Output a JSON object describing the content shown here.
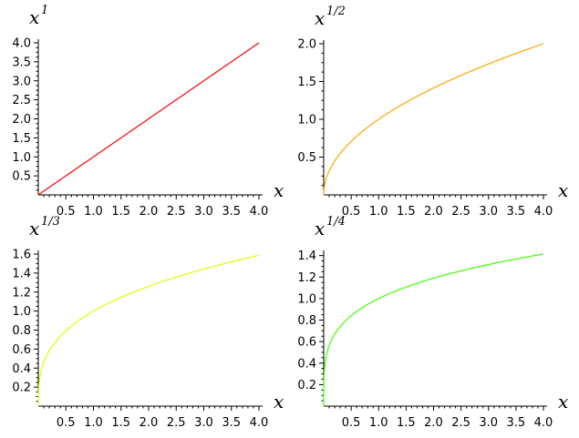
{
  "chart_data": [
    {
      "type": "line",
      "title": "",
      "xlabel": "x",
      "ylabel": "x",
      "ylabel_exponent": "1",
      "color": "#ff0000",
      "exponent": 1,
      "x": [
        0,
        0.5,
        1,
        1.5,
        2,
        2.5,
        3,
        3.5,
        4
      ],
      "y": [
        0,
        0.5,
        1,
        1.5,
        2,
        2.5,
        3,
        3.5,
        4
      ],
      "xlim": [
        0,
        4
      ],
      "ylim": [
        0,
        4
      ],
      "xticks": [
        0.5,
        1.0,
        1.5,
        2.0,
        2.5,
        3.0,
        3.5,
        4.0
      ],
      "xtick_labels": [
        "0.5",
        "1.0",
        "1.5",
        "2.0",
        "2.5",
        "3.0",
        "3.5",
        "4.0"
      ],
      "yticks": [
        0.5,
        1.0,
        1.5,
        2.0,
        2.5,
        3.0,
        3.5,
        4.0
      ],
      "ytick_labels": [
        "0.5",
        "1.0",
        "1.5",
        "2.0",
        "2.5",
        "3.0",
        "3.5",
        "4.0"
      ],
      "grid": false
    },
    {
      "type": "line",
      "title": "",
      "xlabel": "x",
      "ylabel": "x",
      "ylabel_exponent": "1/2",
      "color": "#ffa500",
      "exponent": 0.5,
      "x": [
        0,
        0.5,
        1,
        1.5,
        2,
        2.5,
        3,
        3.5,
        4
      ],
      "y": [
        0,
        0.707,
        1.0,
        1.225,
        1.414,
        1.581,
        1.732,
        1.871,
        2.0
      ],
      "xlim": [
        0,
        4
      ],
      "ylim": [
        0,
        2
      ],
      "xticks": [
        0.5,
        1.0,
        1.5,
        2.0,
        2.5,
        3.0,
        3.5,
        4.0
      ],
      "xtick_labels": [
        "0.5",
        "1.0",
        "1.5",
        "2.0",
        "2.5",
        "3.0",
        "3.5",
        "4.0"
      ],
      "yticks": [
        0.5,
        1.0,
        1.5,
        2.0
      ],
      "ytick_labels": [
        "0.5",
        "1.0",
        "1.5",
        "2.0"
      ],
      "grid": false
    },
    {
      "type": "line",
      "title": "",
      "xlabel": "x",
      "ylabel": "x",
      "ylabel_exponent": "1/3",
      "color": "#dfff00",
      "exponent": 0.3333333,
      "x": [
        0,
        0.5,
        1,
        1.5,
        2,
        2.5,
        3,
        3.5,
        4
      ],
      "y": [
        0,
        0.794,
        1.0,
        1.145,
        1.26,
        1.357,
        1.442,
        1.518,
        1.587
      ],
      "xlim": [
        0,
        4
      ],
      "ylim": [
        0,
        1.6
      ],
      "xticks": [
        0.5,
        1.0,
        1.5,
        2.0,
        2.5,
        3.0,
        3.5,
        4.0
      ],
      "xtick_labels": [
        "0.5",
        "1.0",
        "1.5",
        "2.0",
        "2.5",
        "3.0",
        "3.5",
        "4.0"
      ],
      "yticks": [
        0.2,
        0.4,
        0.6,
        0.8,
        1.0,
        1.2,
        1.4,
        1.6
      ],
      "ytick_labels": [
        "0.2",
        "0.4",
        "0.6",
        "0.8",
        "1.0",
        "1.2",
        "1.4",
        "1.6"
      ],
      "grid": false
    },
    {
      "type": "line",
      "title": "",
      "xlabel": "x",
      "ylabel": "x",
      "ylabel_exponent": "1/4",
      "color": "#40ff00",
      "exponent": 0.25,
      "x": [
        0,
        0.5,
        1,
        1.5,
        2,
        2.5,
        3,
        3.5,
        4
      ],
      "y": [
        0,
        0.841,
        1.0,
        1.107,
        1.189,
        1.257,
        1.316,
        1.368,
        1.414
      ],
      "xlim": [
        0,
        4
      ],
      "ylim": [
        0,
        1.414
      ],
      "xticks": [
        0.5,
        1.0,
        1.5,
        2.0,
        2.5,
        3.0,
        3.5,
        4.0
      ],
      "xtick_labels": [
        "0.5",
        "1.0",
        "1.5",
        "2.0",
        "2.5",
        "3.0",
        "3.5",
        "4.0"
      ],
      "yticks": [
        0.2,
        0.4,
        0.6,
        0.8,
        1.0,
        1.2,
        1.4
      ],
      "ytick_labels": [
        "0.2",
        "0.4",
        "0.6",
        "0.8",
        "1.0",
        "1.2",
        "1.4"
      ],
      "grid": false
    }
  ]
}
